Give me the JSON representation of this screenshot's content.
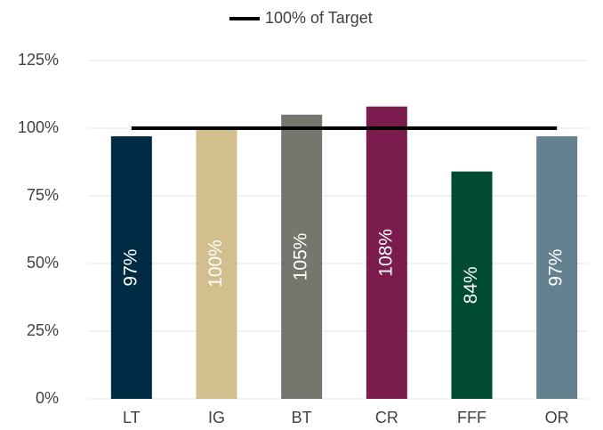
{
  "chart_data": {
    "type": "bar",
    "categories": [
      "LT",
      "IG",
      "BT",
      "CR",
      "FFF",
      "OR"
    ],
    "series": [
      {
        "type": "bar",
        "colors": [
          "#002b45",
          "#d3be8e",
          "#76766e",
          "#7b1c4e",
          "#004b32",
          "#65818f"
        ],
        "values": [
          97,
          100,
          105,
          108,
          84,
          97
        ],
        "value_labels": [
          "97%",
          "100%",
          "105%",
          "108%",
          "84%",
          "97%"
        ]
      },
      {
        "type": "line",
        "name": "100% of Target",
        "color": "#000000",
        "values": [
          100,
          100,
          100,
          100,
          100,
          100
        ]
      }
    ],
    "ylim": [
      0,
      125
    ],
    "yticks": [
      {
        "value": 0,
        "label": "0%"
      },
      {
        "value": 25,
        "label": "25%"
      },
      {
        "value": 50,
        "label": "50%"
      },
      {
        "value": 75,
        "label": "75%"
      },
      {
        "value": 100,
        "label": "100%"
      },
      {
        "value": 125,
        "label": "125%"
      }
    ],
    "grid": true,
    "legend": "top"
  }
}
